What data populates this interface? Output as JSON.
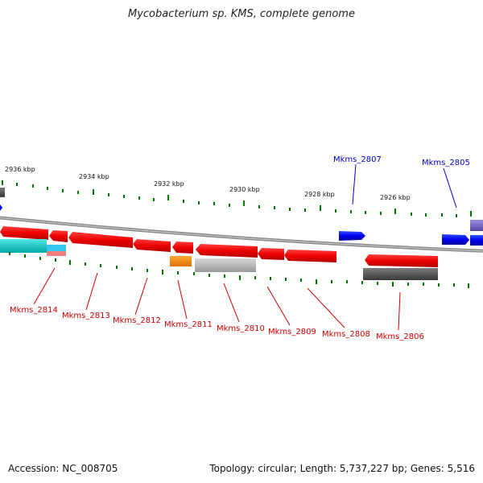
{
  "title": "Mycobacterium sp. KMS, complete genome",
  "accession": "Accession: NC_008705",
  "topology": "Topology: circular; Length: 5,737,227 bp; Genes: 5,516",
  "scale_labels": [
    "2936 kbp",
    "2934 kbp",
    "2932 kbp",
    "2930 kbp",
    "2928 kbp",
    "2926 kbp"
  ],
  "gene_labels": {
    "forward": [
      "Mkms_2807",
      "Mkms_2805"
    ],
    "reverse": [
      "Mkms_2814",
      "Mkms_2813",
      "Mkms_2812",
      "Mkms_2811",
      "Mkms_2810",
      "Mkms_2809",
      "Mkms_2808",
      "Mkms_2806"
    ]
  },
  "colors": {
    "forward_label": "#0000cc",
    "reverse_label": "#cc0000",
    "gene_red": "#ee0000",
    "gene_blue": "#0000ee",
    "tick_green": "#007700",
    "backbone": "#888888"
  }
}
